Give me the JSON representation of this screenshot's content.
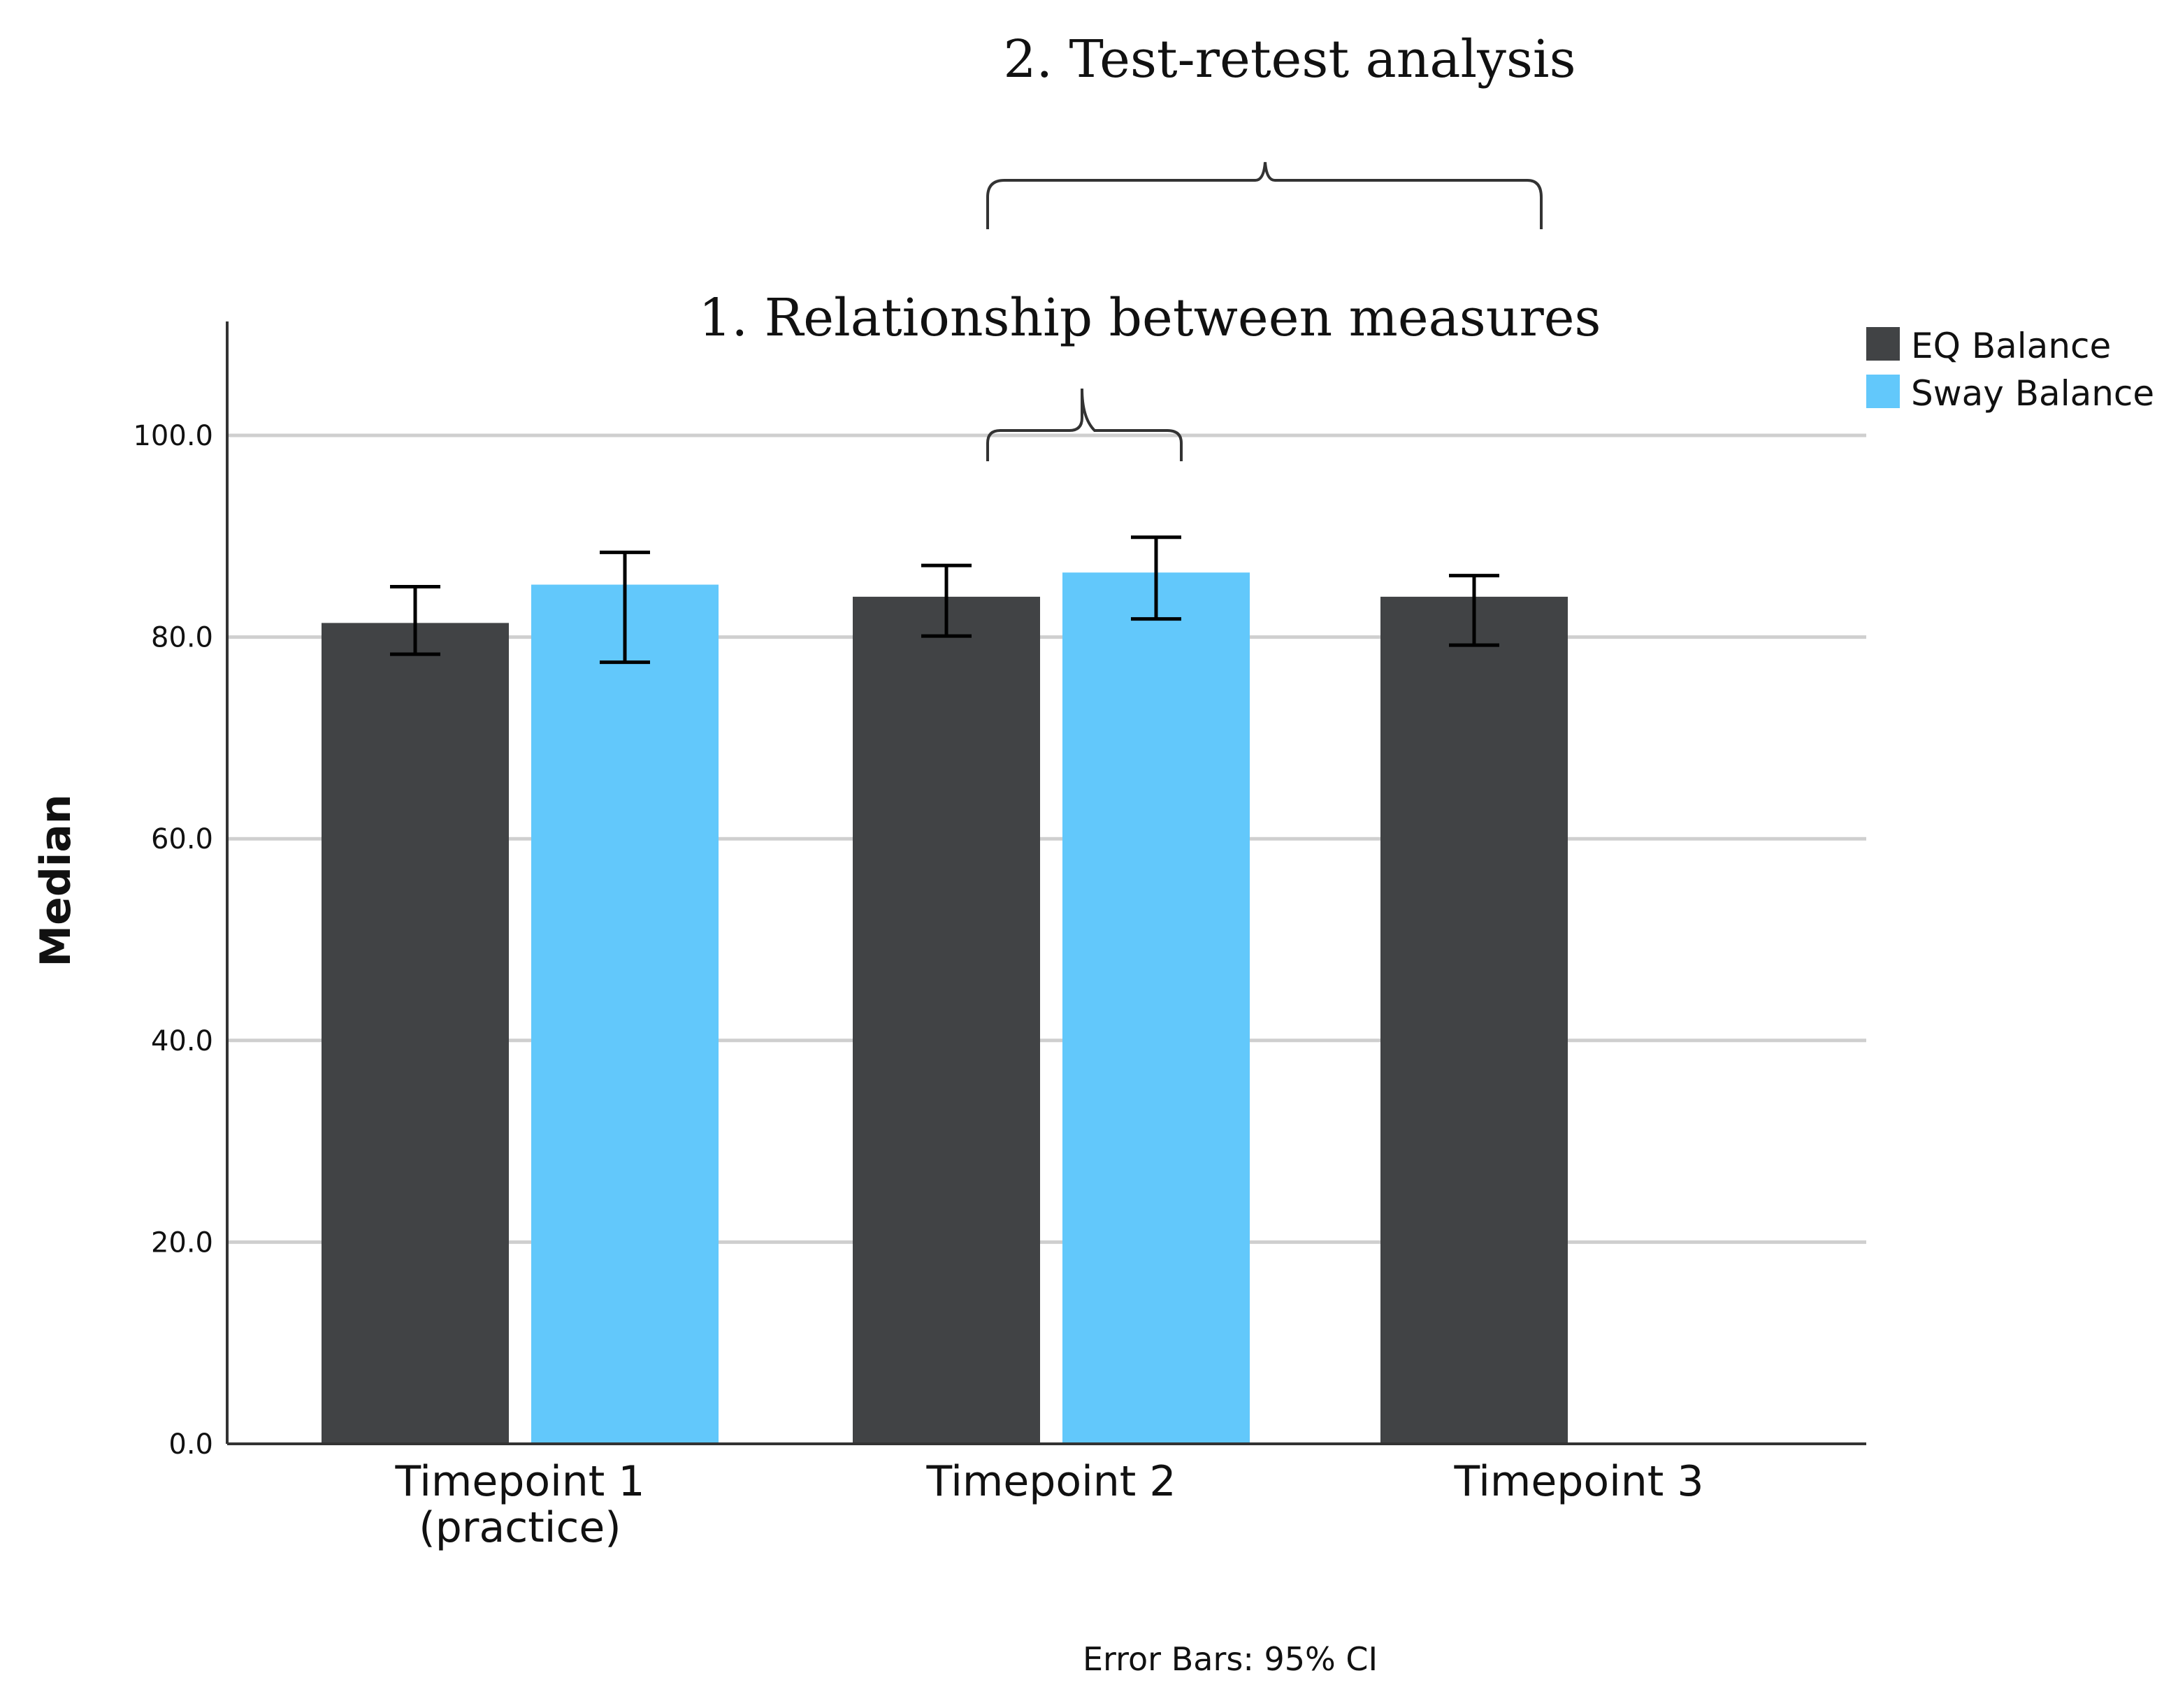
{
  "chart_data": {
    "type": "bar",
    "title": "",
    "xlabel": "",
    "ylabel": "Median",
    "ylim": [
      0,
      110
    ],
    "yticks": [
      "0.0",
      "20.0",
      "40.0",
      "60.0",
      "80.0",
      "100.0"
    ],
    "categories": [
      [
        "Timepoint 1",
        "(practice)"
      ],
      [
        "Timepoint 2"
      ],
      [
        "Timepoint 3"
      ]
    ],
    "series": [
      {
        "name": "EQ Balance",
        "color": "#414345",
        "values": [
          81.4,
          84.0,
          84.0
        ],
        "ci_low": [
          78.3,
          80.1,
          79.2
        ],
        "ci_high": [
          85.0,
          87.1,
          86.1
        ]
      },
      {
        "name": "Sway Balance",
        "color": "#62c8fb",
        "values": [
          85.2,
          86.4,
          null
        ],
        "ci_low": [
          77.5,
          81.8,
          null
        ],
        "ci_high": [
          88.4,
          89.9,
          null
        ]
      }
    ],
    "legend_position": "top-right",
    "annotations": {
      "relationship": "1. Relationship between measures",
      "test_retest": "2. Test-retest analysis"
    },
    "footnote": "Error Bars: 95% CI"
  }
}
